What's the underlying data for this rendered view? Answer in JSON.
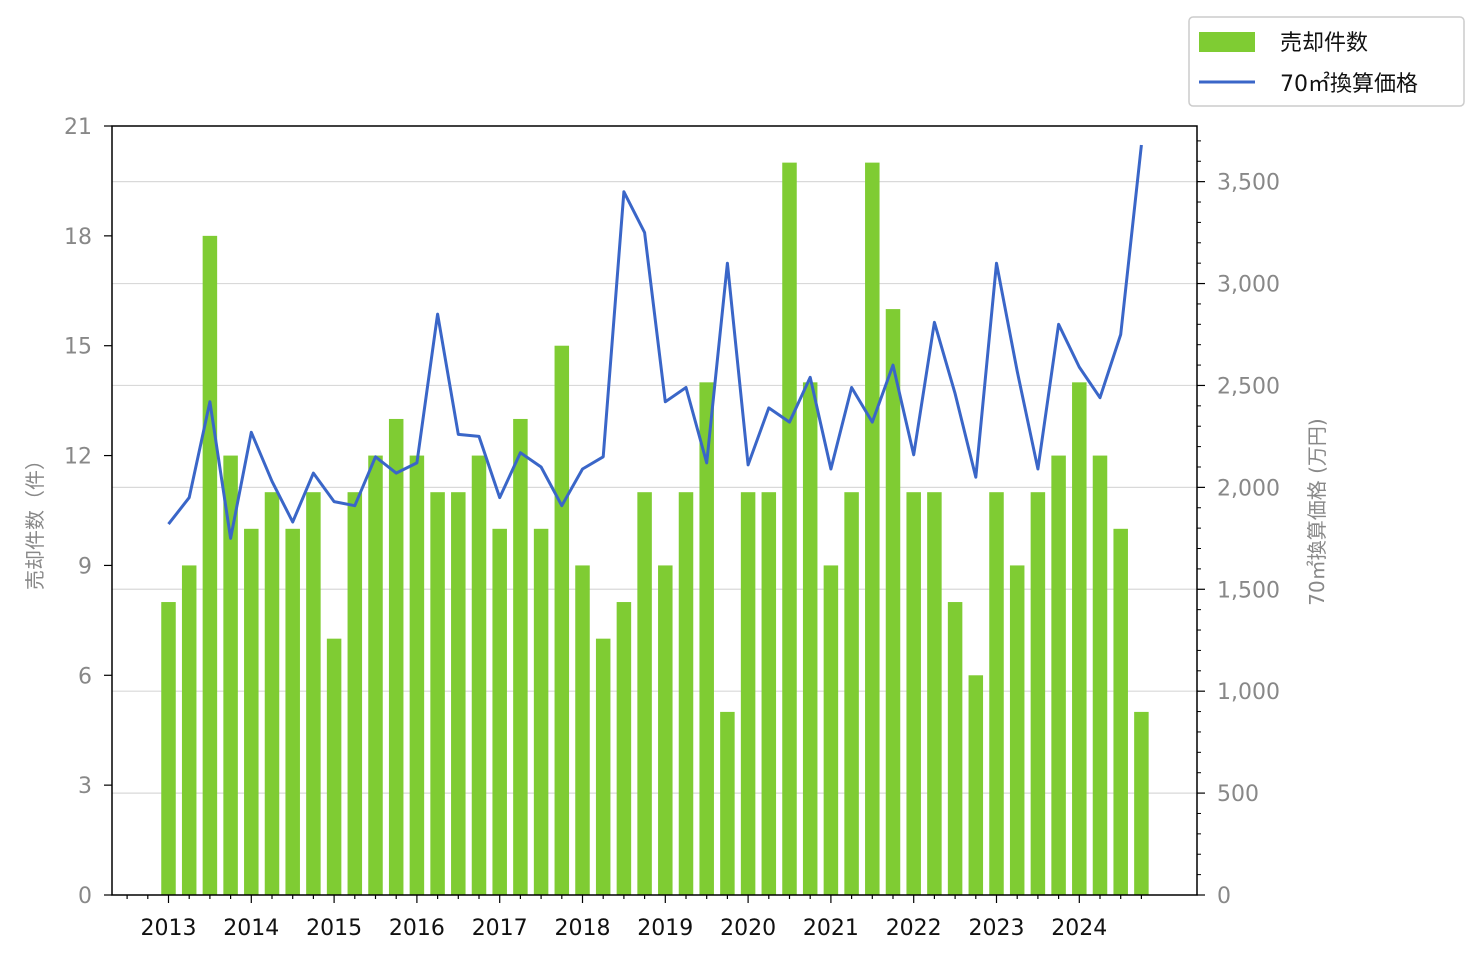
{
  "chart_data": {
    "type": "bar+line",
    "x_tick_labels": [
      "2013",
      "2014",
      "2015",
      "2016",
      "2017",
      "2018",
      "2019",
      "2020",
      "2021",
      "2022",
      "2023",
      "2024"
    ],
    "x_periods": [
      "2013Q1",
      "2013Q2",
      "2013Q3",
      "2013Q4",
      "2014Q1",
      "2014Q2",
      "2014Q3",
      "2014Q4",
      "2015Q1",
      "2015Q2",
      "2015Q3",
      "2015Q4",
      "2016Q1",
      "2016Q2",
      "2016Q3",
      "2016Q4",
      "2017Q1",
      "2017Q2",
      "2017Q3",
      "2017Q4",
      "2018Q1",
      "2018Q2",
      "2018Q3",
      "2018Q4",
      "2019Q1",
      "2019Q2",
      "2019Q3",
      "2019Q4",
      "2020Q1",
      "2020Q2",
      "2020Q3",
      "2020Q4",
      "2021Q1",
      "2021Q2",
      "2021Q3",
      "2021Q4",
      "2022Q1",
      "2022Q2",
      "2022Q3",
      "2022Q4",
      "2023Q1",
      "2023Q2",
      "2023Q3",
      "2023Q4",
      "2024Q1",
      "2024Q2",
      "2024Q3",
      "2024Q4"
    ],
    "series": [
      {
        "name": "売却件数",
        "kind": "bar",
        "axis": "left",
        "color": "#7fcc33",
        "values": [
          8,
          9,
          18,
          12,
          10,
          11,
          10,
          11,
          7,
          11,
          12,
          13,
          12,
          11,
          11,
          12,
          10,
          13,
          10,
          15,
          9,
          7,
          8,
          11,
          9,
          11,
          14,
          5,
          11,
          11,
          20,
          14,
          9,
          11,
          20,
          16,
          11,
          11,
          8,
          6,
          11,
          9,
          11,
          12,
          14,
          12,
          10,
          5
        ]
      },
      {
        "name": "70㎡換算価格",
        "kind": "line",
        "axis": "right",
        "color": "#3a66c8",
        "values": [
          1820,
          1950,
          2420,
          1750,
          2270,
          2030,
          1830,
          2070,
          1930,
          1910,
          2150,
          2070,
          2120,
          2850,
          2260,
          2250,
          1950,
          2170,
          2100,
          1910,
          2090,
          2150,
          3450,
          3250,
          2420,
          2490,
          2120,
          3100,
          2110,
          2390,
          2320,
          2540,
          2090,
          2490,
          2320,
          2600,
          2160,
          2810,
          2460,
          2050,
          3100,
          2570,
          2090,
          2800,
          2590,
          2440,
          2750,
          3680
        ]
      }
    ],
    "y_left": {
      "label": "売却件数（件）",
      "lim": [
        0,
        21
      ],
      "ticks": [
        "0",
        "3",
        "6",
        "9",
        "12",
        "15",
        "18",
        "21"
      ]
    },
    "y_right": {
      "label": "70㎡換算価格 (万円)",
      "lim": [
        0,
        3773
      ],
      "ticks": [
        "0",
        "500",
        "1,000",
        "1,500",
        "2,000",
        "2,500",
        "3,000",
        "3,500"
      ]
    },
    "grid": "horizontal, right axis",
    "legend_placement": "top-right, outside plot"
  }
}
